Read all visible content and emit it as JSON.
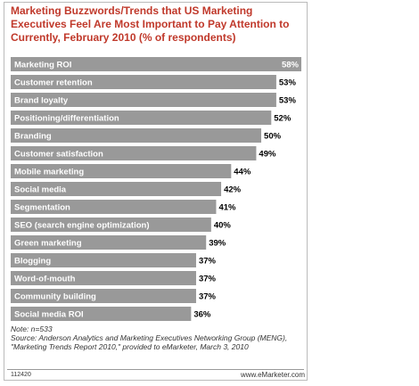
{
  "chart_data": {
    "type": "bar",
    "orientation": "horizontal",
    "title": "Marketing Buzzwords/Trends that US Marketing Executives Feel Are Most Important to Pay Attention to Currently, February 2010 (% of respondents)",
    "categories": [
      "Marketing ROI",
      "Customer retention",
      "Brand loyalty",
      "Positioning/differentiation",
      "Branding",
      "Customer satisfaction",
      "Mobile marketing",
      "Social media",
      "Segmentation",
      "SEO (search engine optimization)",
      "Green marketing",
      "Blogging",
      "Word-of-mouth",
      "Community building",
      "Social media ROI"
    ],
    "values": [
      58,
      53,
      53,
      52,
      50,
      49,
      44,
      42,
      41,
      40,
      39,
      37,
      37,
      37,
      36
    ],
    "value_labels": [
      "58%",
      "53%",
      "53%",
      "52%",
      "50%",
      "49%",
      "44%",
      "42%",
      "41%",
      "40%",
      "39%",
      "37%",
      "37%",
      "37%",
      "36%"
    ],
    "color": "#999999",
    "note": "Note: n=533",
    "source": "Source: Anderson Analytics and Marketing Executives Networking Group (MENG), \"Marketing Trends Report 2010,\" provided to eMarketer, March 3, 2010",
    "chart_id": "112420",
    "brand": "www.eMarketer.com"
  }
}
